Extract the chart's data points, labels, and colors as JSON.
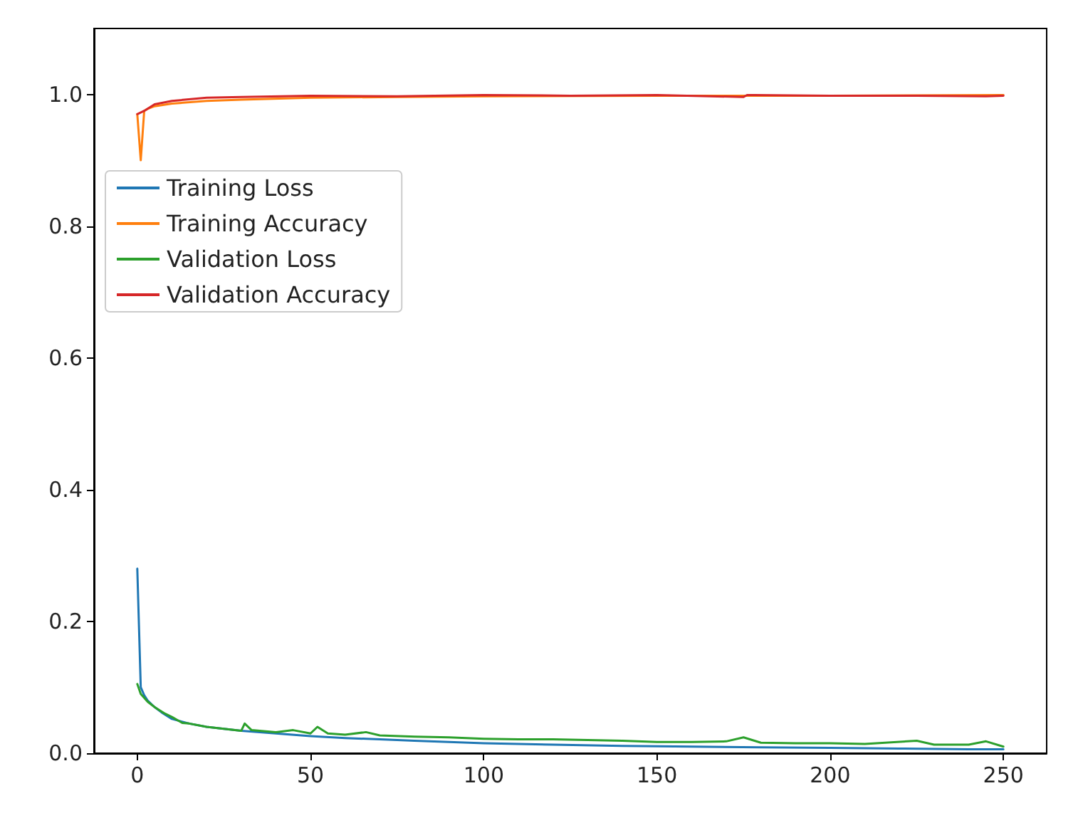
{
  "chart_data": {
    "type": "line",
    "xlim": [
      -12.5,
      262.5
    ],
    "xticks": [
      0,
      50,
      100,
      150,
      200,
      250
    ],
    "ylim": [
      0,
      1.1
    ],
    "yticks": [
      {
        "value": 0,
        "label": "0.0"
      },
      {
        "value": 0.2,
        "label": "0.2"
      },
      {
        "value": 0.4,
        "label": "0.4"
      },
      {
        "value": 0.6,
        "label": "0.6"
      },
      {
        "value": 0.8,
        "label": "0.8"
      },
      {
        "value": 1.0,
        "label": "1.0"
      }
    ],
    "grid": false,
    "legend": "top left",
    "marker": "none",
    "line_style": "solid",
    "series": [
      {
        "name": "Training Loss",
        "color": "#1f77b4",
        "x": [
          0,
          1,
          2,
          3,
          5,
          7,
          10,
          15,
          20,
          25,
          30,
          40,
          50,
          60,
          70,
          80,
          90,
          100,
          120,
          140,
          160,
          180,
          200,
          220,
          240,
          250
        ],
        "values": [
          0.28,
          0.1,
          0.088,
          0.08,
          0.07,
          0.062,
          0.052,
          0.045,
          0.04,
          0.037,
          0.034,
          0.03,
          0.026,
          0.023,
          0.021,
          0.019,
          0.017,
          0.015,
          0.013,
          0.011,
          0.01,
          0.009,
          0.008,
          0.007,
          0.006,
          0.006
        ]
      },
      {
        "name": "Training Accuracy",
        "color": "#ff7f0e",
        "x": [
          0,
          1,
          2,
          3,
          5,
          10,
          20,
          30,
          50,
          75,
          100,
          150,
          200,
          250
        ],
        "values": [
          0.97,
          0.9,
          0.975,
          0.978,
          0.982,
          0.986,
          0.99,
          0.992,
          0.995,
          0.996,
          0.997,
          0.998,
          0.998,
          0.999
        ]
      },
      {
        "name": "Validation Loss",
        "color": "#2ca02c",
        "x": [
          0,
          1,
          3,
          5,
          8,
          10,
          13,
          15,
          20,
          25,
          30,
          31,
          33,
          40,
          45,
          50,
          52,
          55,
          60,
          66,
          70,
          80,
          90,
          100,
          110,
          120,
          130,
          140,
          150,
          160,
          170,
          175,
          180,
          190,
          200,
          210,
          225,
          230,
          240,
          245,
          250
        ],
        "values": [
          0.105,
          0.09,
          0.078,
          0.07,
          0.06,
          0.055,
          0.046,
          0.045,
          0.04,
          0.037,
          0.034,
          0.045,
          0.035,
          0.032,
          0.035,
          0.03,
          0.04,
          0.03,
          0.028,
          0.032,
          0.027,
          0.025,
          0.024,
          0.022,
          0.021,
          0.021,
          0.02,
          0.019,
          0.017,
          0.017,
          0.018,
          0.024,
          0.016,
          0.015,
          0.015,
          0.014,
          0.019,
          0.013,
          0.013,
          0.018,
          0.01
        ]
      },
      {
        "name": "Validation Accuracy",
        "color": "#d62728",
        "x": [
          0,
          2,
          5,
          10,
          20,
          30,
          50,
          75,
          100,
          125,
          150,
          175,
          176,
          178,
          200,
          225,
          245,
          250
        ],
        "values": [
          0.97,
          0.975,
          0.985,
          0.99,
          0.995,
          0.996,
          0.998,
          0.997,
          0.999,
          0.998,
          0.999,
          0.996,
          0.999,
          0.999,
          0.998,
          0.998,
          0.997,
          0.998
        ]
      }
    ]
  }
}
